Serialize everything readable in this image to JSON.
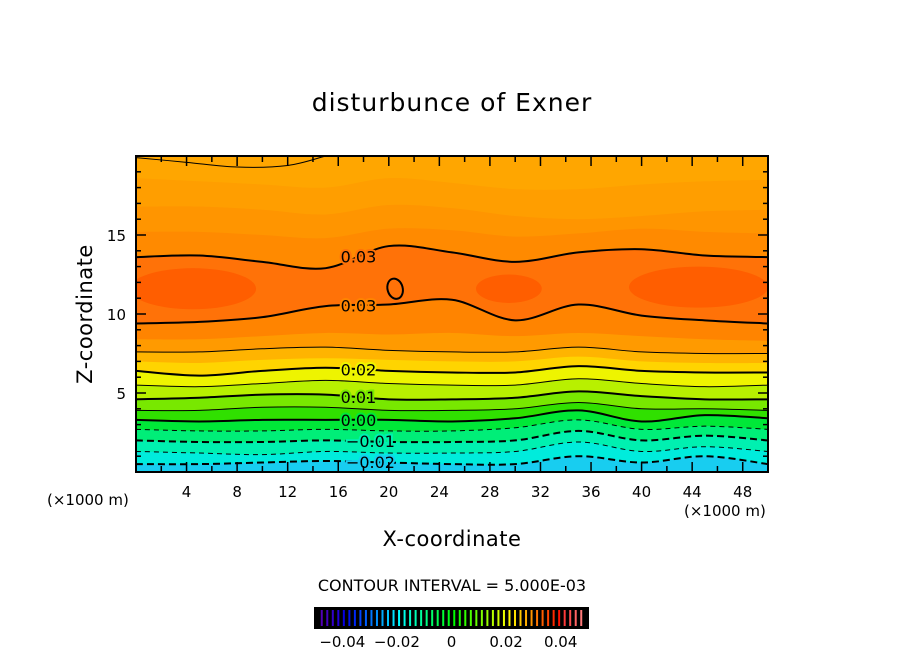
{
  "chart_data": {
    "type": "contour",
    "title": "disturbunce of Exner",
    "xlabel": "X-coordinate",
    "ylabel": "Z-coordinate",
    "x_unit_label": "(×1000 m)",
    "xlim": [
      0,
      50
    ],
    "ylim": [
      0,
      20
    ],
    "x_ticks": [
      4,
      8,
      12,
      16,
      20,
      24,
      28,
      32,
      36,
      40,
      44,
      48
    ],
    "y_ticks": [
      5,
      10,
      15
    ],
    "contour_interval_text": "CONTOUR INTERVAL = 5.000E-03",
    "x_grid": [
      0,
      5,
      10,
      15,
      20,
      25,
      30,
      35,
      40,
      45,
      50
    ],
    "top_fill_color": "#ffa600",
    "contours": [
      {
        "level": null,
        "stroke": false,
        "y": [
          18.6,
          18.4,
          18.2,
          18.0,
          18.6,
          18.3,
          17.9,
          17.9,
          18.2,
          18.4,
          18.5
        ],
        "fill_below": "#ff9e00"
      },
      {
        "level": null,
        "stroke": false,
        "y": [
          16.8,
          16.8,
          16.6,
          16.3,
          16.9,
          16.7,
          16.2,
          16.0,
          16.2,
          16.5,
          16.6
        ],
        "fill_below": "#ff9500"
      },
      {
        "level": null,
        "stroke": false,
        "y": [
          15.2,
          15.2,
          15.0,
          14.8,
          15.4,
          15.3,
          14.9,
          15.1,
          15.4,
          15.2,
          15.1
        ],
        "fill_below": "#ff8a00"
      },
      {
        "level": 0.03,
        "label": "0.03",
        "stroke": true,
        "dashed": false,
        "bold": true,
        "y": [
          13.6,
          13.7,
          13.3,
          12.9,
          14.3,
          13.9,
          13.3,
          13.9,
          14.1,
          13.7,
          13.6
        ],
        "fill_below": "#ff7208"
      },
      {
        "level": 0.03,
        "label": "0.03",
        "stroke": true,
        "dashed": false,
        "bold": true,
        "y": [
          9.4,
          9.5,
          9.8,
          10.5,
          10.6,
          10.9,
          9.6,
          10.6,
          9.9,
          9.6,
          9.4
        ],
        "fill_below": "#ff8400"
      },
      {
        "level": null,
        "stroke": false,
        "y": [
          8.4,
          8.4,
          8.6,
          8.8,
          8.7,
          8.8,
          8.6,
          8.8,
          8.6,
          8.4,
          8.3
        ],
        "fill_below": "#ff9a00"
      },
      {
        "level": 0.025,
        "stroke": true,
        "dashed": false,
        "bold": false,
        "y": [
          7.6,
          7.6,
          7.8,
          7.9,
          7.7,
          7.6,
          7.6,
          7.9,
          7.6,
          7.5,
          7.5
        ],
        "fill_below": "#ffb400"
      },
      {
        "level": null,
        "stroke": false,
        "y": [
          7.0,
          6.9,
          7.1,
          7.2,
          7.1,
          7.0,
          7.0,
          7.3,
          7.0,
          6.9,
          6.9
        ],
        "fill_below": "#ffd400"
      },
      {
        "level": 0.02,
        "label": "0.02",
        "stroke": true,
        "dashed": false,
        "bold": true,
        "y": [
          6.4,
          6.1,
          6.4,
          6.6,
          6.4,
          6.3,
          6.3,
          6.7,
          6.4,
          6.3,
          6.3
        ],
        "fill_below": "#eef400"
      },
      {
        "level": 0.015,
        "stroke": true,
        "dashed": false,
        "bold": false,
        "y": [
          5.5,
          5.4,
          5.6,
          5.8,
          5.6,
          5.5,
          5.5,
          5.9,
          5.6,
          5.4,
          5.5
        ],
        "fill_below": "#b8f000"
      },
      {
        "level": 0.01,
        "label": "0.01",
        "stroke": true,
        "dashed": false,
        "bold": true,
        "y": [
          4.6,
          4.7,
          4.9,
          4.9,
          4.6,
          4.6,
          4.7,
          5.1,
          4.8,
          4.6,
          4.6
        ],
        "fill_below": "#78e800"
      },
      {
        "level": 0.005,
        "stroke": true,
        "dashed": false,
        "bold": false,
        "y": [
          3.9,
          3.9,
          4.1,
          4.1,
          3.9,
          3.9,
          4.0,
          4.4,
          4.0,
          4.0,
          3.9
        ],
        "fill_below": "#30e000"
      },
      {
        "level": 0.0,
        "label": "0.00",
        "stroke": true,
        "dashed": false,
        "bold": true,
        "y": [
          3.3,
          3.2,
          3.3,
          3.3,
          3.3,
          3.2,
          3.4,
          3.9,
          3.2,
          3.6,
          3.4
        ],
        "fill_below": "#00e838"
      },
      {
        "level": -0.005,
        "stroke": true,
        "dashed": true,
        "bold": false,
        "y": [
          2.7,
          2.6,
          2.6,
          2.7,
          2.6,
          2.6,
          2.8,
          3.3,
          2.7,
          2.9,
          2.7
        ],
        "fill_below": "#00ee78"
      },
      {
        "level": -0.01,
        "label": "-0.01",
        "stroke": true,
        "dashed": true,
        "bold": true,
        "y": [
          2.0,
          1.9,
          1.9,
          2.0,
          1.9,
          1.9,
          2.0,
          2.6,
          2.0,
          2.3,
          2.0
        ],
        "fill_below": "#00f0b0"
      },
      {
        "level": -0.015,
        "stroke": true,
        "dashed": true,
        "bold": false,
        "y": [
          1.3,
          1.2,
          1.1,
          1.3,
          1.2,
          1.2,
          1.3,
          1.9,
          1.3,
          1.6,
          1.3
        ],
        "fill_below": "#00ecdc"
      },
      {
        "level": -0.02,
        "label": "-0.02",
        "stroke": true,
        "dashed": true,
        "bold": true,
        "y": [
          0.5,
          0.5,
          0.6,
          0.7,
          0.6,
          0.5,
          0.5,
          1.0,
          0.6,
          1.0,
          0.5
        ],
        "fill_below": "#18cdf0"
      }
    ],
    "label_x": 17.6,
    "partial_lines": [
      {
        "level": 0.035,
        "points": [
          [
            0,
            19.9
          ],
          [
            4,
            19.6
          ],
          [
            8,
            19.3
          ],
          [
            12,
            19.4
          ],
          [
            15,
            20.0
          ]
        ]
      }
    ],
    "closed_contours": [
      {
        "level": 0.03,
        "center": [
          20.5,
          11.6
        ],
        "radii": [
          0.6,
          0.65
        ]
      }
    ],
    "core_regions": [
      {
        "center": [
          4.5,
          11.6
        ],
        "radii": [
          5.0,
          1.3
        ],
        "color": "#ff5e00"
      },
      {
        "center": [
          29.5,
          11.6
        ],
        "radii": [
          2.6,
          0.9
        ],
        "color": "#ff5e00"
      },
      {
        "center": [
          44.5,
          11.7
        ],
        "radii": [
          5.5,
          1.3
        ],
        "color": "#ff5e00"
      }
    ],
    "colorbar": {
      "range": [
        -0.05,
        0.05
      ],
      "tick_values": [
        -0.04,
        -0.02,
        0,
        0.02,
        0.04
      ],
      "tick_labels": [
        "−0.04",
        "−0.02",
        "0",
        "0.02",
        "0.04"
      ],
      "stripes": 48
    }
  }
}
